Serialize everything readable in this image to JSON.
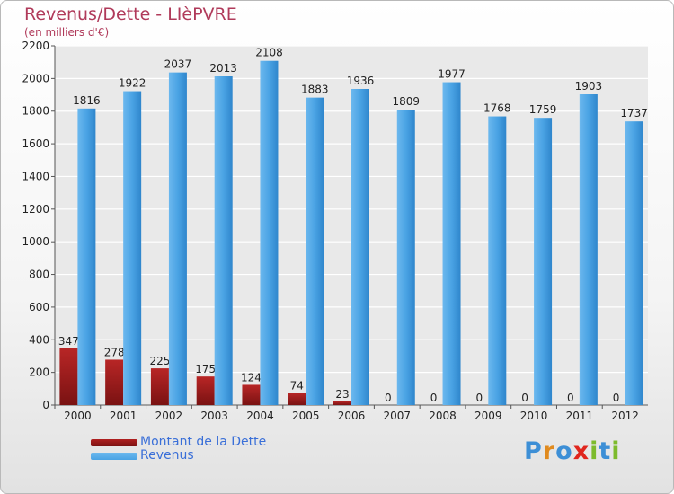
{
  "header": {
    "title": "Revenus/Dette - LIèPVRE",
    "subtitle": "(en milliers d'€)"
  },
  "colors": {
    "dette": "#7a1212",
    "revenus": "#4aa3e4"
  },
  "chart_data": {
    "type": "bar",
    "categories": [
      "2000",
      "2001",
      "2002",
      "2003",
      "2004",
      "2005",
      "2006",
      "2007",
      "2008",
      "2009",
      "2010",
      "2011",
      "2012"
    ],
    "series": [
      {
        "name": "Montant de la Dette",
        "values": [
          347,
          278,
          225,
          175,
          124,
          74,
          23,
          0,
          0,
          0,
          0,
          0,
          0
        ]
      },
      {
        "name": "Revenus",
        "values": [
          1816,
          1922,
          2037,
          2013,
          2108,
          1883,
          1936,
          1809,
          1977,
          1768,
          1759,
          1903,
          1737
        ]
      }
    ],
    "ylim": [
      0,
      2200
    ],
    "yticks": [
      0,
      200,
      400,
      600,
      800,
      1000,
      1200,
      1400,
      1600,
      1800,
      2000,
      2200
    ],
    "grid": true,
    "legend": "bottom-left"
  },
  "logo": {
    "letters": [
      "P",
      "r",
      "o",
      "x",
      "i",
      "t",
      "i"
    ],
    "colors": [
      "#3d8fd6",
      "#e08a1e",
      "#3d8fd6",
      "#e0261e",
      "#7dbb2c",
      "#3d8fd6",
      "#7dbb2c"
    ]
  }
}
